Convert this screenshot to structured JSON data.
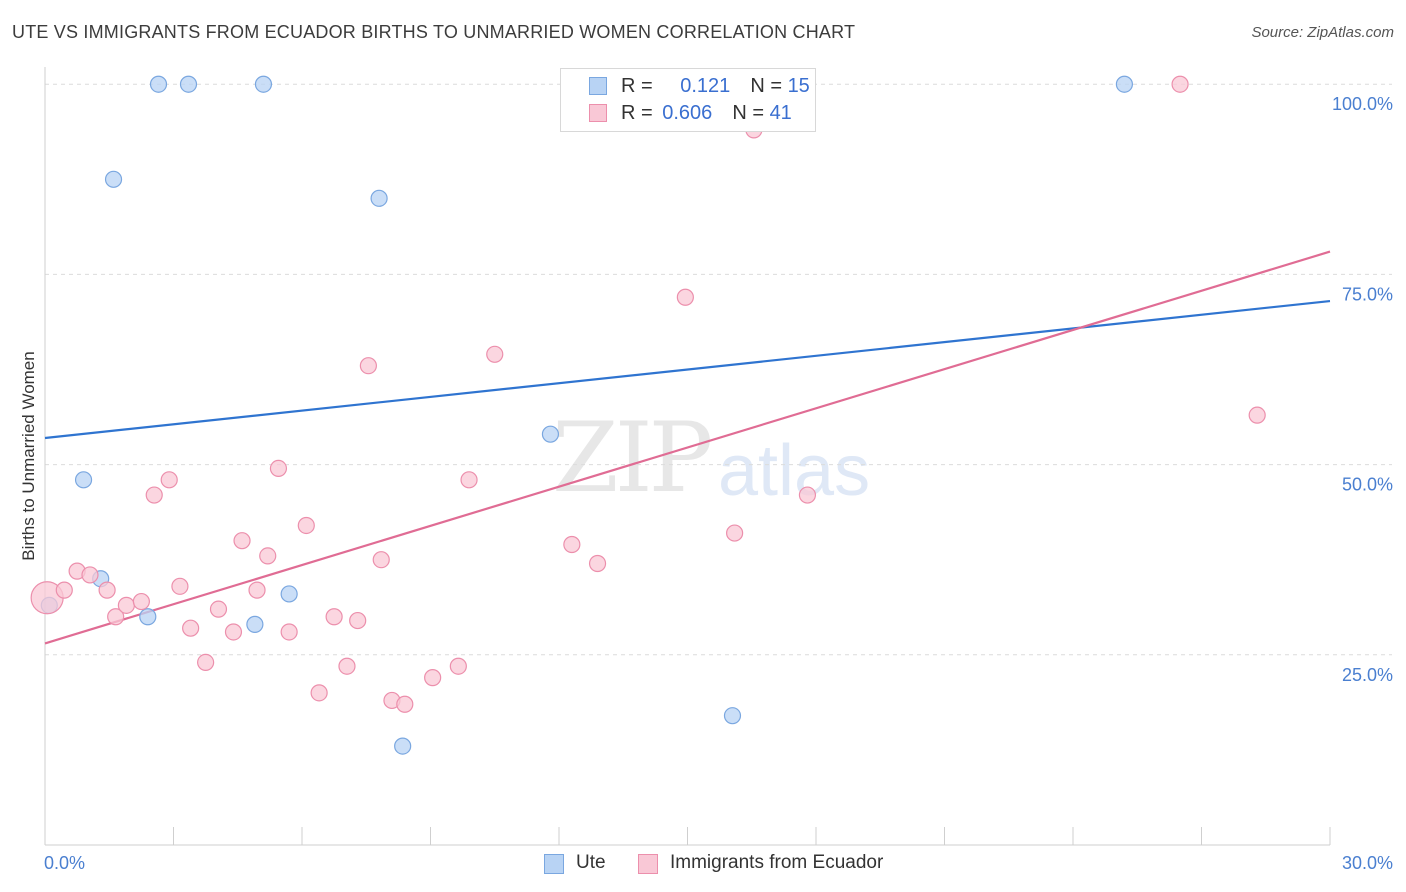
{
  "title": "UTE VS IMMIGRANTS FROM ECUADOR BIRTHS TO UNMARRIED WOMEN CORRELATION CHART",
  "source": "Source: ZipAtlas.com",
  "watermark": {
    "zip": "ZIP",
    "atlas": "atlas"
  },
  "legend": {
    "rows": [
      {
        "r_label": "R = ",
        "r_value": "0.121",
        "n_label": "N = ",
        "n_value": "15"
      },
      {
        "r_label": "R = ",
        "r_value": "0.606",
        "n_label": "N = ",
        "n_value": "41"
      }
    ]
  },
  "bottom_legend": {
    "ute": "Ute",
    "ecuador": "Immigrants from Ecuador"
  },
  "colors": {
    "ute_fill": "#b8d3f4",
    "ute_stroke": "#7aa7e0",
    "ute_line": "#2f74d0",
    "ecu_fill": "#f9c8d6",
    "ecu_stroke": "#ec8fac",
    "ecu_line": "#e06c94",
    "grid": "#dcdcdc",
    "tick_text": "#4a7fd0"
  },
  "chart_data": {
    "type": "scatter",
    "title": "UTE VS IMMIGRANTS FROM ECUADOR BIRTHS TO UNMARRIED WOMEN CORRELATION CHART",
    "xlabel": "",
    "ylabel": "Births to Unmarried Women",
    "xlim": [
      0,
      30
    ],
    "ylim": [
      0,
      102
    ],
    "x_tick_labels": [
      "0.0%",
      "30.0%"
    ],
    "y_ticks": [
      25,
      50,
      75,
      100
    ],
    "y_tick_labels": [
      "25.0%",
      "50.0%",
      "75.0%",
      "100.0%"
    ],
    "series": [
      {
        "name": "Ute",
        "points": [
          [
            0.1,
            31.5
          ],
          [
            1.3,
            35.0
          ],
          [
            0.9,
            48.0
          ],
          [
            1.6,
            87.5
          ],
          [
            2.4,
            30.0
          ],
          [
            2.65,
            100
          ],
          [
            3.35,
            100
          ],
          [
            5.1,
            100
          ],
          [
            4.9,
            29.0
          ],
          [
            5.7,
            33.0
          ],
          [
            7.8,
            85.0
          ],
          [
            8.35,
            13.0
          ],
          [
            11.8,
            54.0
          ],
          [
            16.05,
            17.0
          ],
          [
            25.2,
            100
          ]
        ],
        "trend": {
          "x": [
            0,
            30
          ],
          "y": [
            53.5,
            71.5
          ]
        }
      },
      {
        "name": "Immigrants from Ecuador",
        "points": [
          [
            0.05,
            32.5
          ],
          [
            0.45,
            33.5
          ],
          [
            0.75,
            36.0
          ],
          [
            1.05,
            35.5
          ],
          [
            1.45,
            33.5
          ],
          [
            1.65,
            30.0
          ],
          [
            1.9,
            31.5
          ],
          [
            2.25,
            32.0
          ],
          [
            2.55,
            46.0
          ],
          [
            2.9,
            48.0
          ],
          [
            3.15,
            34.0
          ],
          [
            3.4,
            28.5
          ],
          [
            3.75,
            24.0
          ],
          [
            4.05,
            31.0
          ],
          [
            4.4,
            28.0
          ],
          [
            4.6,
            40.0
          ],
          [
            4.95,
            33.5
          ],
          [
            5.2,
            38.0
          ],
          [
            5.45,
            49.5
          ],
          [
            5.7,
            28.0
          ],
          [
            6.1,
            42.0
          ],
          [
            6.4,
            20.0
          ],
          [
            6.75,
            30.0
          ],
          [
            7.05,
            23.5
          ],
          [
            7.3,
            29.5
          ],
          [
            7.55,
            63.0
          ],
          [
            7.85,
            37.5
          ],
          [
            8.1,
            19.0
          ],
          [
            8.4,
            18.5
          ],
          [
            9.05,
            22.0
          ],
          [
            9.65,
            23.5
          ],
          [
            9.9,
            48.0
          ],
          [
            10.5,
            64.5
          ],
          [
            12.3,
            39.5
          ],
          [
            12.9,
            37.0
          ],
          [
            14.95,
            72.0
          ],
          [
            16.1,
            41.0
          ],
          [
            16.55,
            94.0
          ],
          [
            17.8,
            46.0
          ],
          [
            26.5,
            100
          ],
          [
            28.3,
            56.5
          ]
        ],
        "trend": {
          "x": [
            0,
            30
          ],
          "y": [
            26.5,
            78.0
          ]
        }
      }
    ]
  }
}
